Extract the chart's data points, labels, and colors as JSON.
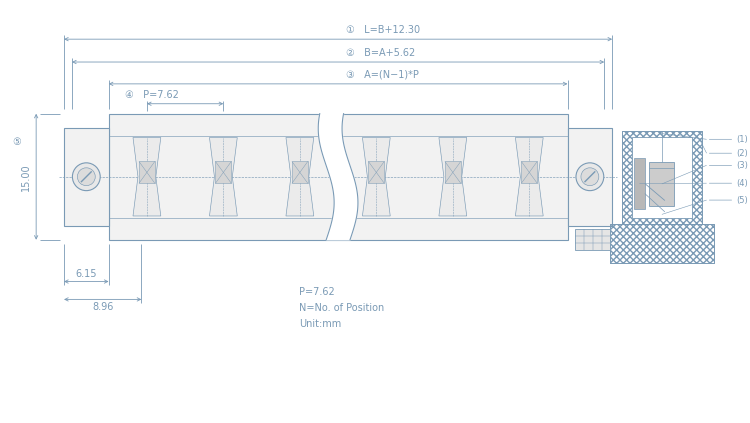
{
  "bg_color": "#ffffff",
  "line_color": "#7a9ab5",
  "text_color": "#7a9ab5",
  "annotations": {
    "dim1_label": "①   L=B+12.30",
    "dim2_label": "②   B=A+5.62",
    "dim3_label": "③   A=(N−1)*P",
    "dim4_label": "④   P=7.62",
    "dim5_label": "⑤",
    "note_p": "P=7.62",
    "note_n": "N=No. of Position",
    "note_u": "Unit:mm",
    "dim_15": "15.00",
    "dim_615": "6.15",
    "dim_896": "8.96"
  }
}
